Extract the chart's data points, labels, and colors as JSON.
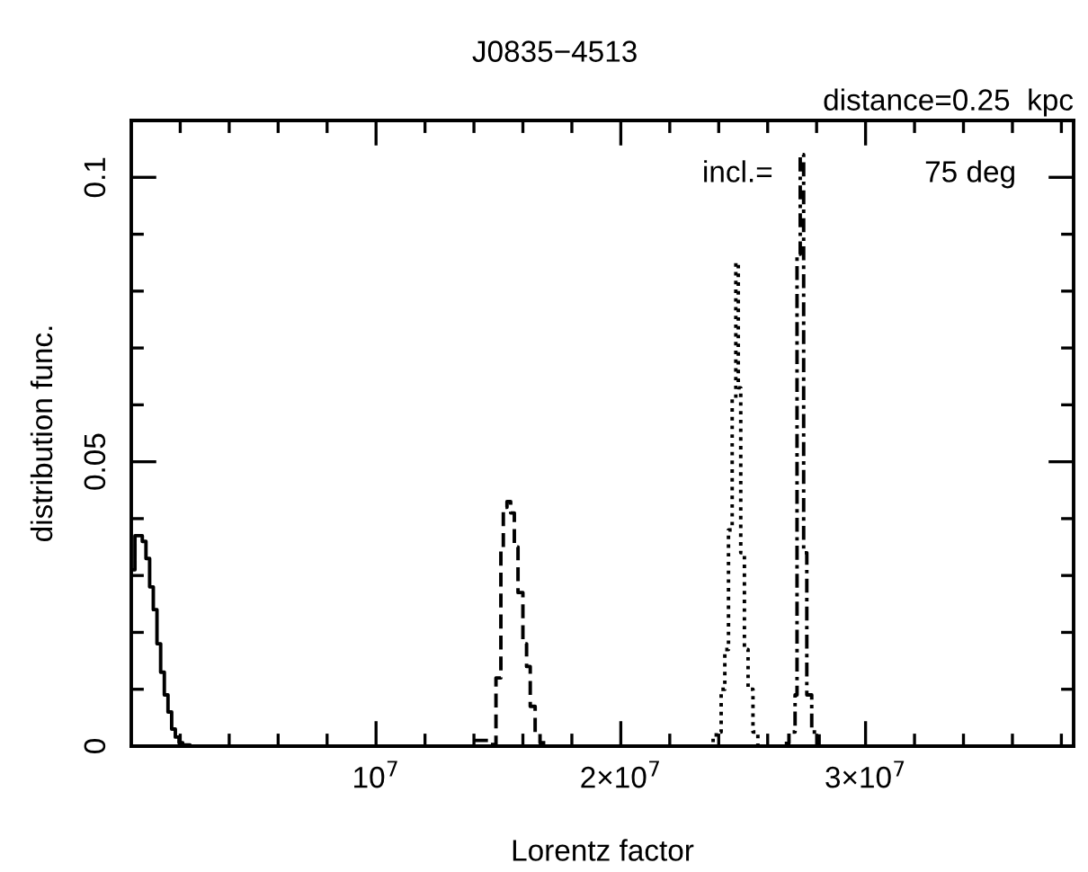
{
  "chart_data": {
    "type": "step",
    "title": "J0835−4513",
    "subtitle": "distance=0.25  kpc",
    "xlabel": "Lorentz factor",
    "ylabel": "distribution func.",
    "annotations": [
      "incl.=",
      "75 deg"
    ],
    "xlim": [
      0,
      38500000
    ],
    "ylim": [
      0,
      0.11
    ],
    "xticks": [
      {
        "value": 2000000,
        "label": null
      },
      {
        "value": 4000000,
        "label": null
      },
      {
        "value": 6000000,
        "label": null
      },
      {
        "value": 8000000,
        "label": null
      },
      {
        "value": 10000000,
        "label": "10$^{7}$"
      },
      {
        "value": 12000000,
        "label": null
      },
      {
        "value": 14000000,
        "label": null
      },
      {
        "value": 16000000,
        "label": null
      },
      {
        "value": 18000000,
        "label": null
      },
      {
        "value": 20000000,
        "label": "2×10$^{7}$"
      },
      {
        "value": 22000000,
        "label": null
      },
      {
        "value": 24000000,
        "label": null
      },
      {
        "value": 26000000,
        "label": null
      },
      {
        "value": 28000000,
        "label": null
      },
      {
        "value": 30000000,
        "label": "3×10$^{7}$"
      },
      {
        "value": 32000000,
        "label": null
      },
      {
        "value": 34000000,
        "label": null
      },
      {
        "value": 36000000,
        "label": null
      },
      {
        "value": 38000000,
        "label": null
      }
    ],
    "yticks": [
      0,
      {
        "value": 0.01,
        "label": null
      },
      {
        "value": 0.02,
        "label": null
      },
      {
        "value": 0.03,
        "label": null
      },
      {
        "value": 0.04,
        "label": null
      },
      0.05,
      {
        "value": 0.06,
        "label": null
      },
      {
        "value": 0.07,
        "label": null
      },
      {
        "value": 0.08,
        "label": null
      },
      {
        "value": 0.09,
        "label": null
      },
      0.1
    ],
    "grid": false,
    "legend": false,
    "series": [
      {
        "color": "#000000",
        "line_style": "solid",
        "x": [
          0,
          150000,
          300000,
          450000,
          600000,
          750000,
          900000,
          1050000,
          1200000,
          1350000,
          1500000,
          1650000,
          1800000,
          1950000,
          2100000,
          2400000
        ],
        "values": [
          0.031,
          0.037,
          0.037,
          0.036,
          0.033,
          0.028,
          0.024,
          0.018,
          0.013,
          0.009,
          0.006,
          0.003,
          0.0016,
          0.0006,
          0.0002,
          0
        ]
      },
      {
        "color": "#000000",
        "line_style": "dashed",
        "x": [
          14000000,
          14600000,
          14900000,
          15100000,
          15200000,
          15350000,
          15500000,
          15650000,
          15800000,
          16000000,
          16150000,
          16300000,
          16500000,
          16700000,
          17000000
        ],
        "values": [
          0.001,
          0.0003,
          0.012,
          0.035,
          0.042,
          0.043,
          0.041,
          0.035,
          0.027,
          0.018,
          0.014,
          0.007,
          0.0025,
          0.0006,
          0
        ]
      },
      {
        "color": "#000000",
        "line_style": "dotted",
        "x": [
          23700000,
          23900000,
          24100000,
          24250000,
          24400000,
          24550000,
          24700000,
          24800000,
          24900000,
          25050000,
          25200000,
          25400000,
          25600000
        ],
        "values": [
          0.001,
          0.0025,
          0.01,
          0.017,
          0.038,
          0.061,
          0.085,
          0.063,
          0.034,
          0.017,
          0.01,
          0.0025,
          0
        ]
      },
      {
        "color": "#000000",
        "line_style": "dashdot",
        "x": [
          26700000,
          26870000,
          27120000,
          27200000,
          27330000,
          27470000,
          27600000,
          27800000,
          28100000
        ],
        "values": [
          0.0005,
          0.0025,
          0.009,
          0.0865,
          0.104,
          0.034,
          0.009,
          0.0025,
          0
        ]
      }
    ]
  }
}
